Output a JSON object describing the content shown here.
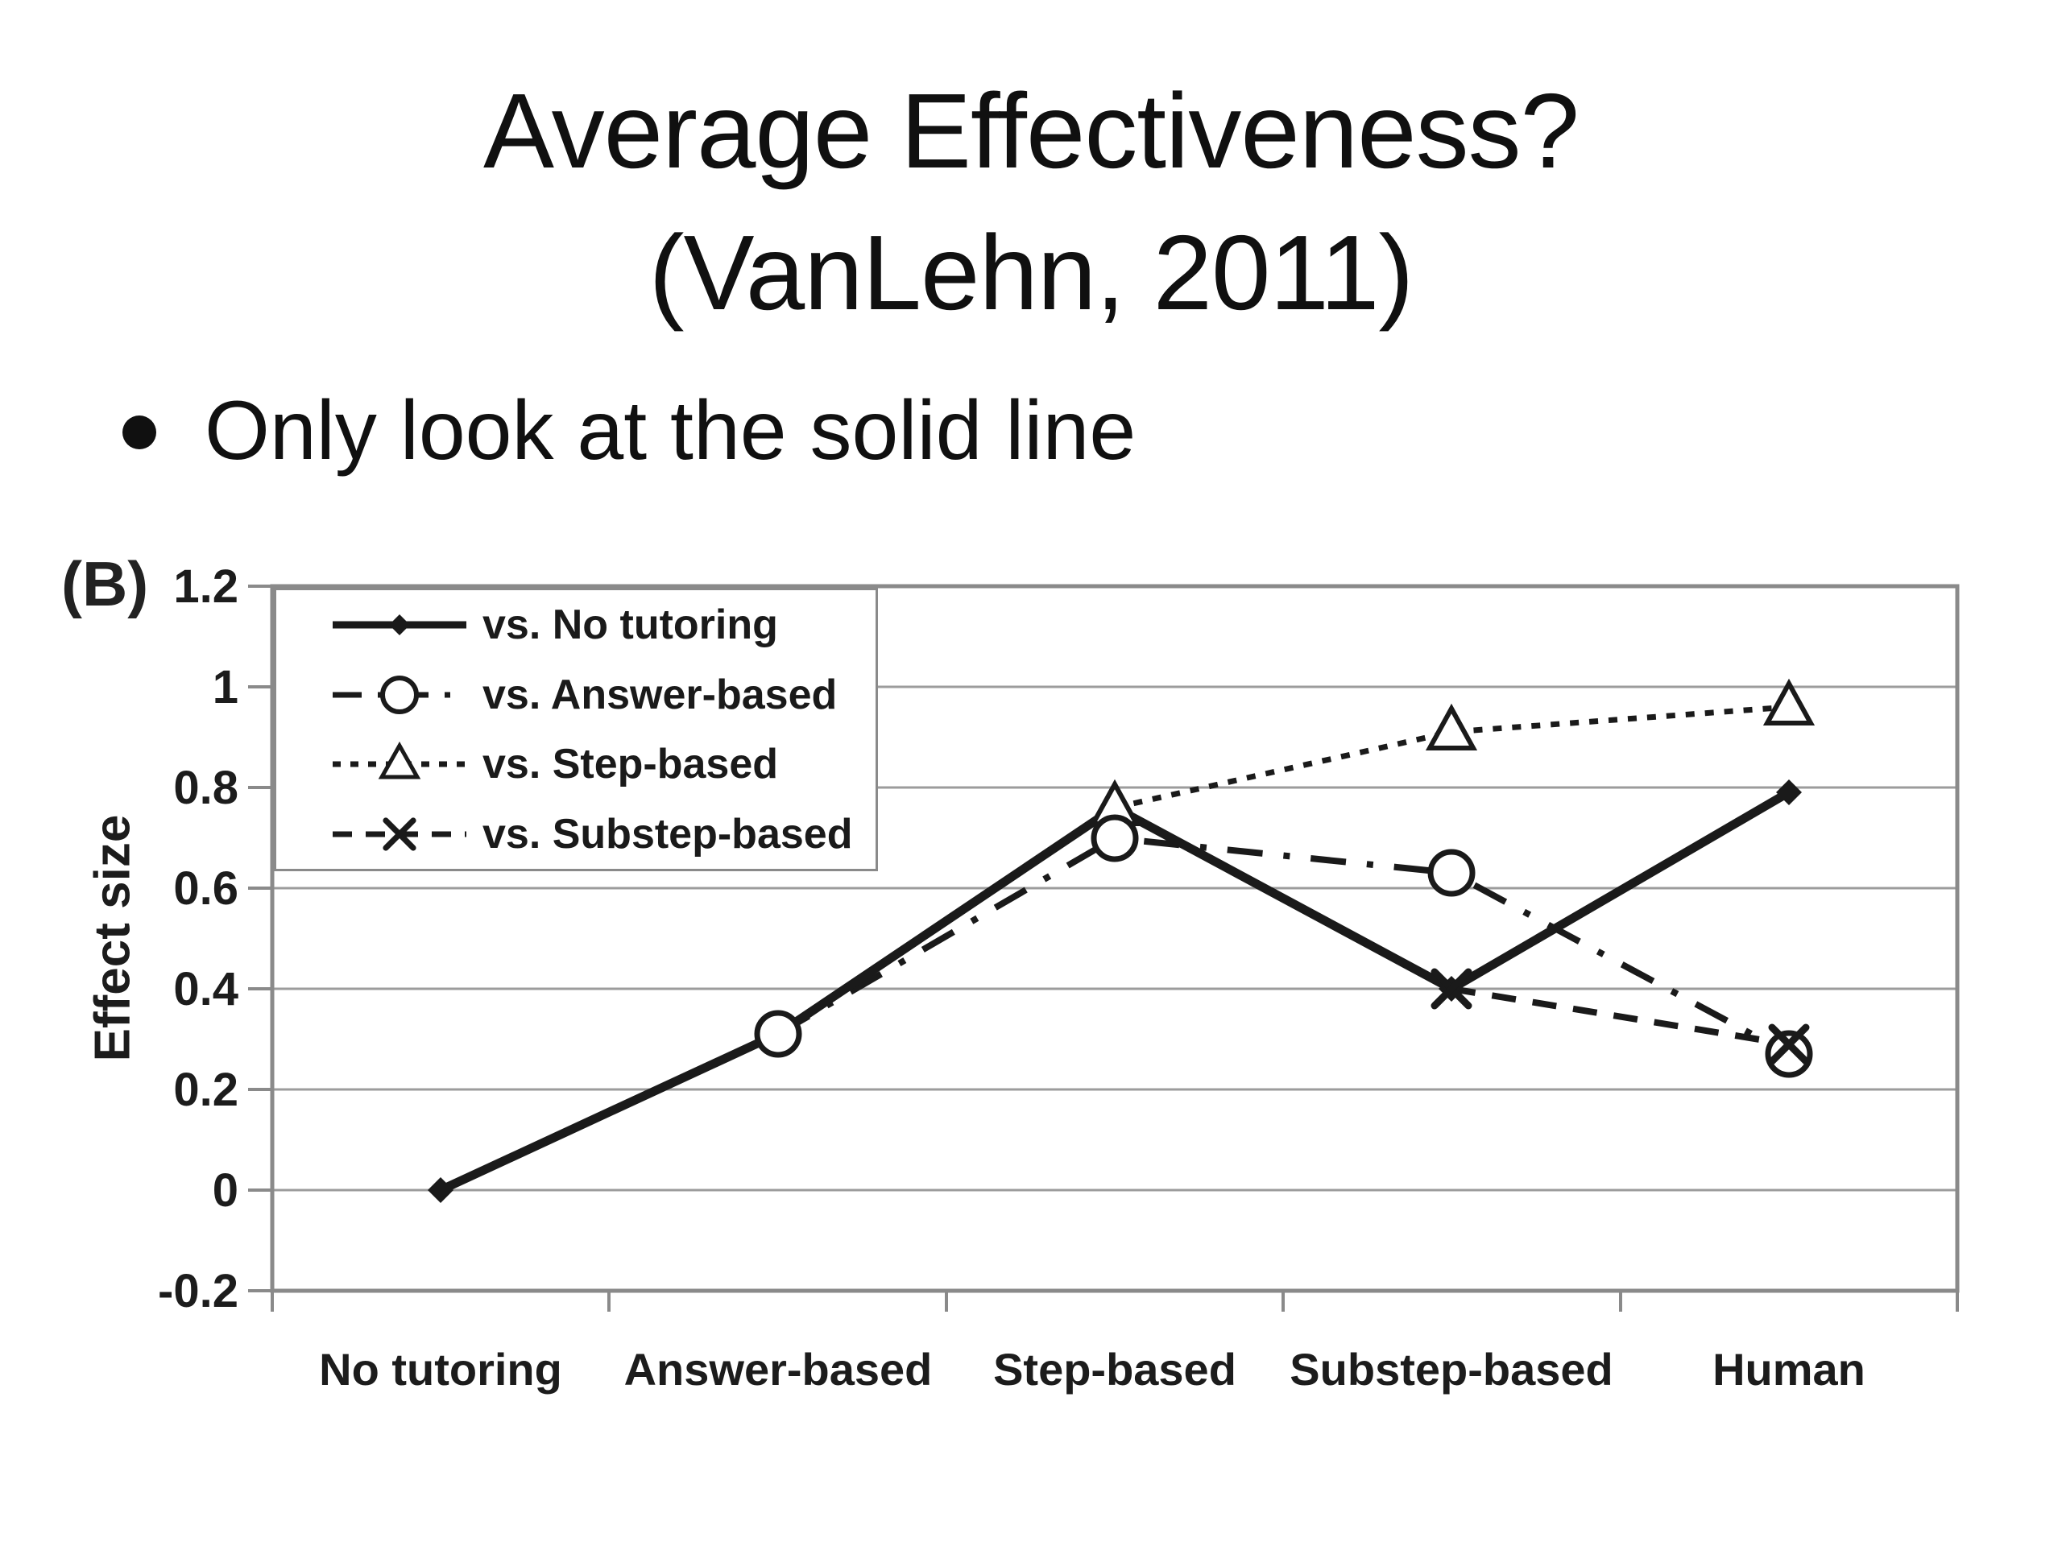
{
  "slide": {
    "title_line1": "Average Effectiveness?",
    "title_line2": "(VanLehn, 2011)",
    "bullet_text": "Only look at the solid line"
  },
  "chart_data": {
    "type": "line",
    "panel_label": "(B)",
    "ylabel": "Effect size",
    "xlabel": "",
    "ylim": [
      -0.2,
      1.2
    ],
    "grid": true,
    "legend_position": "top-left",
    "yticks": [
      "1.2",
      "1",
      "0.8",
      "0.6",
      "0.4",
      "0.2",
      "0",
      "-0.2"
    ],
    "categories": [
      "No tutoring",
      "Answer-based",
      "Step-based",
      "Substep-based",
      "Human"
    ],
    "series": [
      {
        "name": "vs. No tutoring",
        "line": "solid",
        "marker": "diamond",
        "start_index": 0,
        "values": [
          0,
          0.31,
          0.76,
          0.4,
          0.79
        ]
      },
      {
        "name": "vs. Answer-based",
        "line": "dashdot",
        "marker": "circle",
        "start_index": 1,
        "values": [
          0.31,
          0.7,
          0.63,
          0.27
        ]
      },
      {
        "name": "vs. Step-based",
        "line": "dotted",
        "marker": "triangle",
        "start_index": 2,
        "values": [
          0.76,
          0.91,
          0.96
        ]
      },
      {
        "name": "vs. Substep-based",
        "line": "dashed",
        "marker": "x",
        "start_index": 3,
        "values": [
          0.4,
          0.29
        ]
      }
    ],
    "colors": {
      "ink": "#1a1a1a",
      "grid": "#9c9c9c",
      "frame": "#8a8a8a",
      "text": "#101010"
    }
  }
}
